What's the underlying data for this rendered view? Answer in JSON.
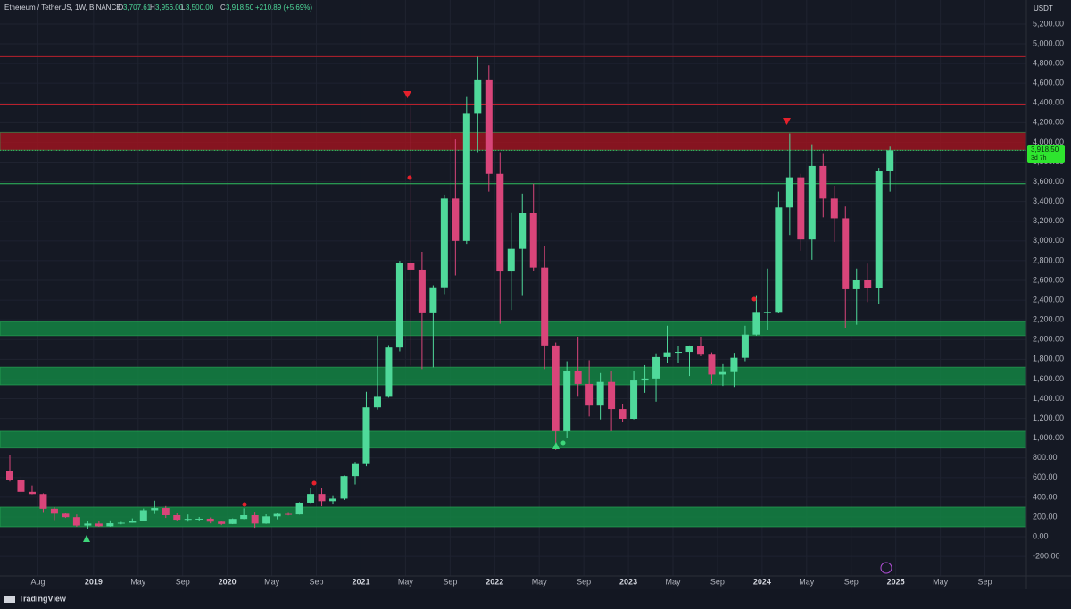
{
  "header": {
    "symbol": "Ethereum / TetherUS, 1W, BINANCE",
    "open_label": "O",
    "open": "3,707.61",
    "high_label": "H",
    "high": "3,956.00",
    "low_label": "L",
    "low": "3,500.00",
    "close_label": "C",
    "close": "3,918.50",
    "change": "+210.89 (+5.69%)"
  },
  "price_axis": {
    "currency": "USDT",
    "last_price": "3,918.50",
    "countdown": "3d 7h"
  },
  "brand": "TradingView",
  "chart_data": {
    "type": "candlestick",
    "x": [
      "2018-05",
      "2018-06",
      "2018-07",
      "2018-08",
      "2018-09",
      "2018-10",
      "2018-11",
      "2018-12",
      "2019-01",
      "2019-02",
      "2019-03",
      "2019-04",
      "2019-05",
      "2019-06",
      "2019-07",
      "2019-08",
      "2019-09",
      "2019-10",
      "2019-11",
      "2019-12",
      "2020-01",
      "2020-02",
      "2020-03",
      "2020-04",
      "2020-05",
      "2020-06",
      "2020-07",
      "2020-08",
      "2020-09",
      "2020-10",
      "2020-11",
      "2020-12",
      "2021-01",
      "2021-02",
      "2021-03",
      "2021-04",
      "2021-05",
      "2021-06",
      "2021-07",
      "2021-08",
      "2021-09",
      "2021-10",
      "2021-11",
      "2021-12",
      "2022-01",
      "2022-02",
      "2022-03",
      "2022-04",
      "2022-05",
      "2022-06",
      "2022-07",
      "2022-08",
      "2022-09",
      "2022-10",
      "2022-11",
      "2022-12",
      "2023-01",
      "2023-02",
      "2023-03",
      "2023-04",
      "2023-05",
      "2023-06",
      "2023-07",
      "2023-08",
      "2023-09",
      "2023-10",
      "2023-11",
      "2023-12",
      "2024-01",
      "2024-02",
      "2024-03",
      "2024-04",
      "2024-05",
      "2024-06",
      "2024-07",
      "2024-08",
      "2024-09",
      "2024-10",
      "2024-11",
      "2024-12"
    ],
    "open": [
      670,
      578,
      455,
      433,
      283,
      233,
      198,
      113,
      133,
      106,
      136,
      141,
      162,
      268,
      290,
      218,
      172,
      180,
      182,
      152,
      129,
      180,
      218,
      133,
      206,
      231,
      226,
      345,
      434,
      360,
      386,
      615,
      737,
      1312,
      1419,
      1919,
      2773,
      2709,
      2275,
      2530,
      3430,
      3000,
      4290,
      4630,
      3680,
      2690,
      2920,
      3280,
      2730,
      1940,
      1070,
      1680,
      1550,
      1330,
      1570,
      1295,
      1196,
      1585,
      1605,
      1822,
      1870,
      1875,
      1935,
      1855,
      1645,
      1670,
      1815,
      2050,
      2280,
      2280,
      3340,
      3645,
      3015,
      3760,
      3430,
      3230,
      2510,
      2600,
      2520,
      3707.61
    ],
    "high": [
      830,
      620,
      520,
      440,
      300,
      240,
      225,
      160,
      160,
      165,
      150,
      185,
      285,
      365,
      310,
      240,
      225,
      200,
      195,
      155,
      185,
      287,
      253,
      227,
      240,
      250,
      350,
      490,
      490,
      420,
      620,
      760,
      1470,
      2040,
      1943,
      2798,
      4372,
      2890,
      2550,
      3470,
      4030,
      4460,
      4868,
      4780,
      3900,
      3290,
      3480,
      3580,
      2950,
      1970,
      1780,
      2030,
      1790,
      1660,
      1680,
      1350,
      1680,
      1740,
      1860,
      2140,
      1930,
      1940,
      2030,
      1870,
      1750,
      1865,
      2140,
      2450,
      2720,
      3500,
      4090,
      3680,
      3980,
      3890,
      3560,
      3350,
      2720,
      2770,
      3740,
      3956
    ],
    "low": [
      560,
      420,
      430,
      250,
      168,
      190,
      100,
      82,
      100,
      102,
      125,
      140,
      157,
      230,
      190,
      160,
      152,
      155,
      135,
      117,
      127,
      177,
      90,
      130,
      176,
      216,
      224,
      340,
      308,
      335,
      373,
      530,
      715,
      1290,
      1410,
      1880,
      1737,
      1700,
      1718,
      2460,
      2650,
      2970,
      3900,
      3500,
      2160,
      2300,
      2450,
      2700,
      1700,
      880,
      1000,
      1420,
      1220,
      1190,
      1070,
      1160,
      1190,
      1460,
      1370,
      1760,
      1760,
      1630,
      1830,
      1550,
      1530,
      1520,
      1780,
      2040,
      2100,
      2270,
      3060,
      2900,
      2810,
      3240,
      2990,
      2120,
      2150,
      2380,
      2360,
      3500
    ],
    "close": [
      578,
      455,
      433,
      283,
      233,
      198,
      113,
      133,
      106,
      136,
      141,
      162,
      268,
      290,
      218,
      172,
      180,
      182,
      152,
      129,
      180,
      218,
      133,
      206,
      231,
      226,
      345,
      434,
      360,
      386,
      615,
      737,
      1312,
      1419,
      1919,
      2773,
      2709,
      2275,
      2530,
      3430,
      3000,
      4290,
      4630,
      3680,
      2690,
      2920,
      3280,
      2730,
      1940,
      1070,
      1680,
      1550,
      1330,
      1570,
      1295,
      1196,
      1585,
      1605,
      1822,
      1870,
      1875,
      1935,
      1855,
      1645,
      1670,
      1815,
      2050,
      2280,
      2280,
      3340,
      3645,
      3015,
      3760,
      3430,
      3230,
      2510,
      2600,
      2520,
      3707.61,
      3918.5
    ],
    "up_color": "#4fd99a",
    "down_color": "#d9457a",
    "levels": [
      {
        "value": 4870,
        "color": "#b8202c"
      },
      {
        "value": 4380,
        "color": "#b8202c"
      },
      {
        "value": 3580,
        "color": "#2fbf5f"
      }
    ],
    "zones": [
      {
        "from": 3920,
        "to": 4100,
        "color": "#a3131f"
      },
      {
        "from": 2040,
        "to": 2180,
        "color": "#138a45"
      },
      {
        "from": 1540,
        "to": 1720,
        "color": "#138a45"
      },
      {
        "from": 900,
        "to": 1070,
        "color": "#138a45"
      },
      {
        "from": 100,
        "to": 300,
        "color": "#138a45"
      }
    ],
    "xlim": [
      "2018-05",
      "2025-12"
    ],
    "xticks": [
      {
        "value": "2018-08",
        "label": "Aug"
      },
      {
        "value": "2019-01",
        "label": "2019"
      },
      {
        "value": "2019-05",
        "label": "May"
      },
      {
        "value": "2019-09",
        "label": "Sep"
      },
      {
        "value": "2020-01",
        "label": "2020"
      },
      {
        "value": "2020-05",
        "label": "May"
      },
      {
        "value": "2020-09",
        "label": "Sep"
      },
      {
        "value": "2021-01",
        "label": "2021"
      },
      {
        "value": "2021-05",
        "label": "May"
      },
      {
        "value": "2021-09",
        "label": "Sep"
      },
      {
        "value": "2022-01",
        "label": "2022"
      },
      {
        "value": "2022-05",
        "label": "May"
      },
      {
        "value": "2022-09",
        "label": "Sep"
      },
      {
        "value": "2023-01",
        "label": "2023"
      },
      {
        "value": "2023-05",
        "label": "May"
      },
      {
        "value": "2023-09",
        "label": "Sep"
      },
      {
        "value": "2024-01",
        "label": "2024"
      },
      {
        "value": "2024-05",
        "label": "May"
      },
      {
        "value": "2024-09",
        "label": "Sep"
      },
      {
        "value": "2025-01",
        "label": "2025"
      },
      {
        "value": "2025-05",
        "label": "May"
      },
      {
        "value": "2025-09",
        "label": "Sep"
      }
    ],
    "ylim": [
      -398,
      5444
    ],
    "yticks": [
      {
        "value": -200,
        "label": "-200.00"
      },
      {
        "value": 0,
        "label": "0.00"
      },
      {
        "value": 200,
        "label": "200.00"
      },
      {
        "value": 400,
        "label": "400.00"
      },
      {
        "value": 600,
        "label": "600.00"
      },
      {
        "value": 800,
        "label": "800.00"
      },
      {
        "value": 1000,
        "label": "1,000.00"
      },
      {
        "value": 1200,
        "label": "1,200.00"
      },
      {
        "value": 1400,
        "label": "1,400.00"
      },
      {
        "value": 1600,
        "label": "1,600.00"
      },
      {
        "value": 1800,
        "label": "1,800.00"
      },
      {
        "value": 2000,
        "label": "2,000.00"
      },
      {
        "value": 2200,
        "label": "2,200.00"
      },
      {
        "value": 2400,
        "label": "2,400.00"
      },
      {
        "value": 2600,
        "label": "2,600.00"
      },
      {
        "value": 2800,
        "label": "2,800.00"
      },
      {
        "value": 3000,
        "label": "3,000.00"
      },
      {
        "value": 3200,
        "label": "3,200.00"
      },
      {
        "value": 3400,
        "label": "3,400.00"
      },
      {
        "value": 3600,
        "label": "3,600.00"
      },
      {
        "value": 3800,
        "label": "3,800.00"
      },
      {
        "value": 4000,
        "label": "4,000.00"
      },
      {
        "value": 4200,
        "label": "4,200.00"
      },
      {
        "value": 4400,
        "label": "4,400.00"
      },
      {
        "value": 4600,
        "label": "4,600.00"
      },
      {
        "value": 4800,
        "label": "4,800.00"
      },
      {
        "value": 5000,
        "label": "5,000.00"
      },
      {
        "value": 5200,
        "label": "5,200.00"
      }
    ],
    "grid": true
  }
}
